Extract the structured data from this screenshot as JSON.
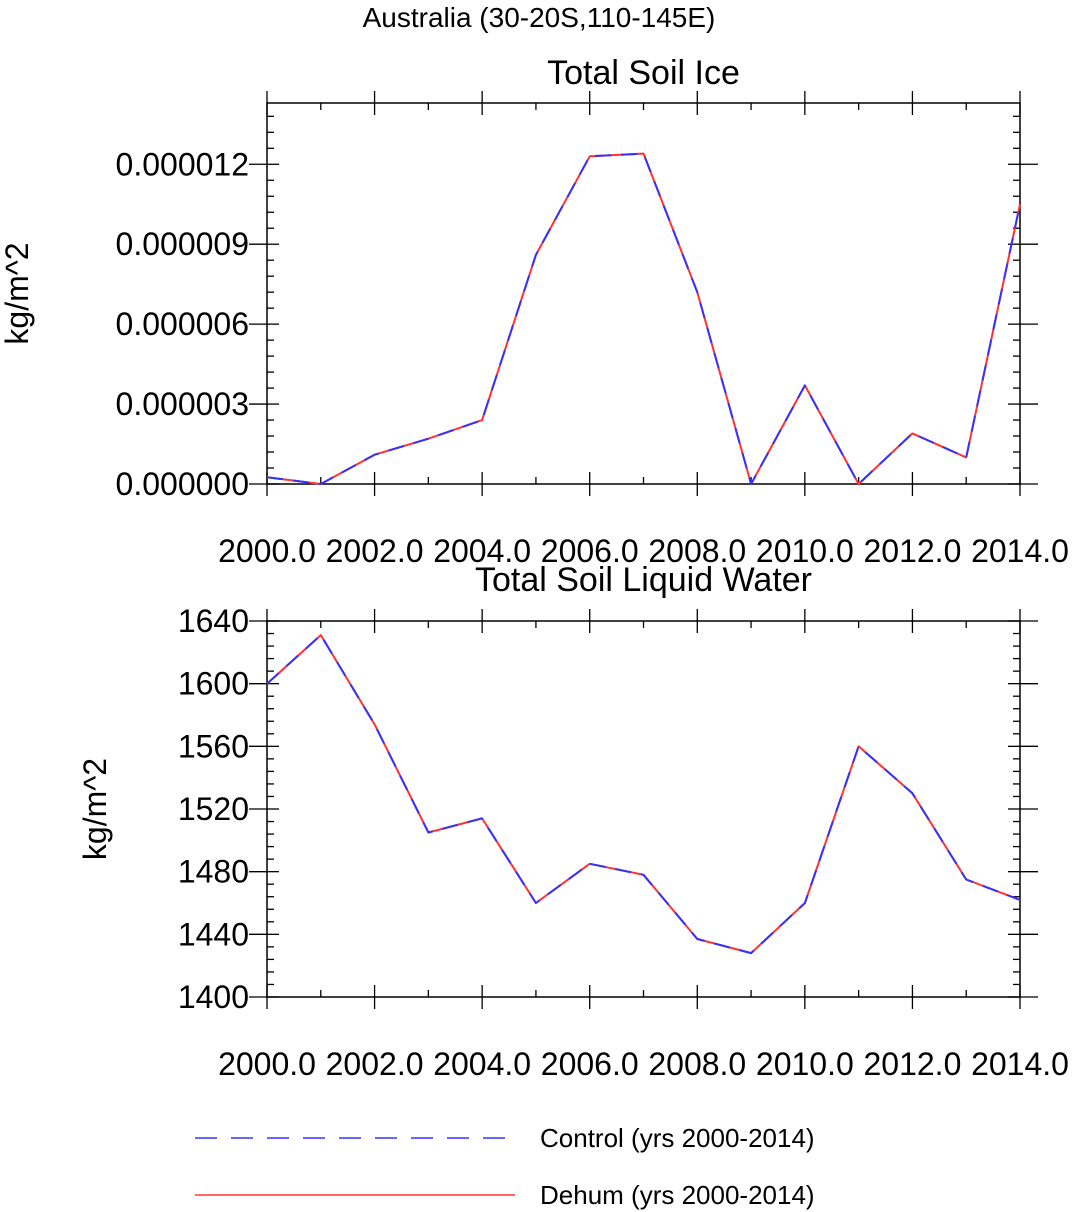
{
  "page": {
    "supertitle": "Australia (30-20S,110-145E)"
  },
  "legend": {
    "items": [
      {
        "label": "Control (yrs 2000-2014)",
        "color": "#3333ff",
        "dash": "dashed"
      },
      {
        "label": "Dehum (yrs 2000-2014)",
        "color": "#ff3333",
        "dash": "solid"
      }
    ]
  },
  "chart_data": [
    {
      "type": "line",
      "title": "Total Soil Ice",
      "ylabel": "kg/m^2",
      "xlabel": "",
      "xlim": [
        2000,
        2014
      ],
      "ylim": [
        0,
        1.43e-05
      ],
      "xticks": [
        2000,
        2002,
        2004,
        2006,
        2008,
        2010,
        2012,
        2014
      ],
      "xtick_labels": [
        "2000.0",
        "2002.0",
        "2004.0",
        "2006.0",
        "2008.0",
        "2010.0",
        "2012.0",
        "2014.0"
      ],
      "xminor_step": 1,
      "yticks": [
        0,
        3e-06,
        6e-06,
        9e-06,
        1.2e-05
      ],
      "ytick_labels": [
        "0.000000",
        "0.000003",
        "0.000006",
        "0.000009",
        "0.000012"
      ],
      "yminor_step": 6e-07,
      "grid": false,
      "x": [
        2000,
        2001,
        2002,
        2003,
        2004,
        2005,
        2006,
        2007,
        2008,
        2009,
        2010,
        2011,
        2012,
        2013,
        2014
      ],
      "series": [
        {
          "name": "Control (yrs 2000-2014)",
          "color": "#3333ff",
          "dash": "dashed",
          "values": [
            2.5e-07,
            0.0,
            1.1e-06,
            1.7e-06,
            2.4e-06,
            8.6e-06,
            1.23e-05,
            1.24e-05,
            7.2e-06,
            0.0,
            3.7e-06,
            0.0,
            1.9e-06,
            1e-06,
            1.05e-05
          ]
        },
        {
          "name": "Dehum (yrs 2000-2014)",
          "color": "#ff3333",
          "dash": "solid",
          "values": [
            2.5e-07,
            0.0,
            1.1e-06,
            1.7e-06,
            2.4e-06,
            8.6e-06,
            1.23e-05,
            1.24e-05,
            7.2e-06,
            0.0,
            3.7e-06,
            0.0,
            1.9e-06,
            1e-06,
            1.05e-05
          ]
        }
      ]
    },
    {
      "type": "line",
      "title": "Total Soil Liquid Water",
      "ylabel": "kg/m^2",
      "xlabel": "",
      "xlim": [
        2000,
        2014
      ],
      "ylim": [
        1400,
        1640
      ],
      "xticks": [
        2000,
        2002,
        2004,
        2006,
        2008,
        2010,
        2012,
        2014
      ],
      "xtick_labels": [
        "2000.0",
        "2002.0",
        "2004.0",
        "2006.0",
        "2008.0",
        "2010.0",
        "2012.0",
        "2014.0"
      ],
      "xminor_step": 1,
      "yticks": [
        1400,
        1440,
        1480,
        1520,
        1560,
        1600,
        1640
      ],
      "ytick_labels": [
        "1400",
        "1440",
        "1480",
        "1520",
        "1560",
        "1600",
        "1640"
      ],
      "yminor_step": 8,
      "grid": false,
      "x": [
        2000,
        2001,
        2002,
        2003,
        2004,
        2005,
        2006,
        2007,
        2008,
        2009,
        2010,
        2011,
        2012,
        2013,
        2014
      ],
      "series": [
        {
          "name": "Control (yrs 2000-2014)",
          "color": "#3333ff",
          "dash": "dashed",
          "values": [
            1600,
            1631,
            1574,
            1505,
            1514,
            1460,
            1485,
            1478,
            1437,
            1428,
            1460,
            1560,
            1530,
            1475,
            1462
          ]
        },
        {
          "name": "Dehum (yrs 2000-2014)",
          "color": "#ff3333",
          "dash": "solid",
          "values": [
            1600,
            1631,
            1574,
            1505,
            1514,
            1460,
            1485,
            1478,
            1437,
            1428,
            1460,
            1560,
            1530,
            1475,
            1462
          ]
        }
      ]
    }
  ]
}
